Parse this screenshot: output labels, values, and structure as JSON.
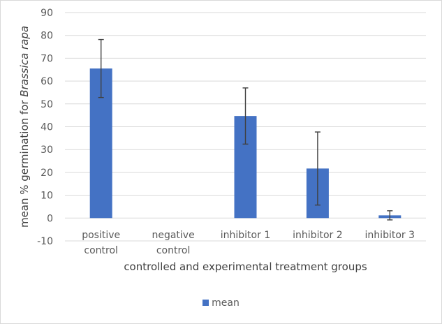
{
  "chart_data": {
    "type": "bar",
    "categories": [
      [
        "positive",
        "control"
      ],
      [
        "negative",
        "control"
      ],
      [
        "inhibitor 1"
      ],
      [
        "inhibitor 2"
      ],
      [
        "inhibitor 3"
      ]
    ],
    "series": [
      {
        "name": "mean",
        "color": "#4472C4",
        "values": [
          65.5,
          0,
          44.7,
          21.7,
          1.2
        ],
        "error": [
          12.7,
          0,
          12.3,
          16.0,
          2.0
        ]
      }
    ],
    "xlabel": "controlled and experimental treatment groups",
    "ylabel_prefix": "mean % germination for ",
    "ylabel_italic": "Brassica rapa",
    "ylim": [
      -10,
      90
    ],
    "yticks": [
      90,
      80,
      70,
      60,
      50,
      40,
      30,
      20,
      10,
      0,
      -10
    ],
    "grid": true,
    "legend_position": "bottom"
  }
}
